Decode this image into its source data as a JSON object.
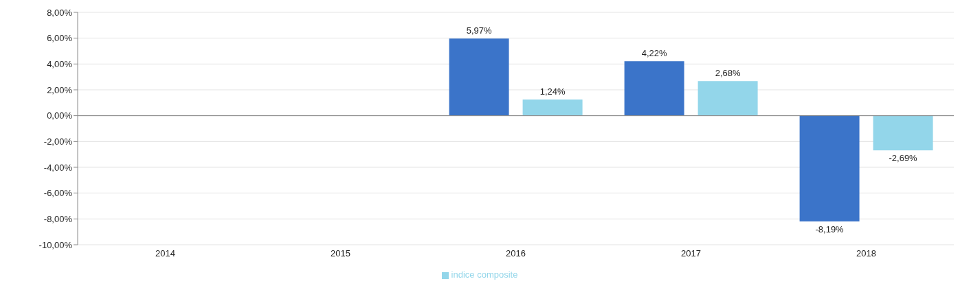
{
  "chart_data": {
    "type": "bar",
    "categories": [
      "2014",
      "2015",
      "2016",
      "2017",
      "2018"
    ],
    "series": [
      {
        "color": "#3b74c9",
        "values": [
          null,
          null,
          5.97,
          4.22,
          -8.19
        ],
        "value_labels": [
          null,
          null,
          "5,97%",
          "4,22%",
          "-8,19%"
        ]
      },
      {
        "name": "indice composite",
        "color": "#93d6ea",
        "values": [
          null,
          null,
          1.24,
          2.68,
          -2.69
        ],
        "value_labels": [
          null,
          null,
          "1,24%",
          "2,68%",
          "-2,69%"
        ]
      }
    ],
    "ylim": [
      -10,
      8
    ],
    "yticks": [
      {
        "value": -10,
        "label": "-10,00%"
      },
      {
        "value": -8,
        "label": "-8,00%"
      },
      {
        "value": -6,
        "label": "-6,00%"
      },
      {
        "value": -4,
        "label": "-4,00%"
      },
      {
        "value": -2,
        "label": "-2,00%"
      },
      {
        "value": 0,
        "label": "0,00%"
      },
      {
        "value": 2,
        "label": "2,00%"
      },
      {
        "value": 4,
        "label": "4,00%"
      },
      {
        "value": 6,
        "label": "6,00%"
      },
      {
        "value": 8,
        "label": "8,00%"
      }
    ],
    "grid": "y",
    "legend": "bottom"
  }
}
